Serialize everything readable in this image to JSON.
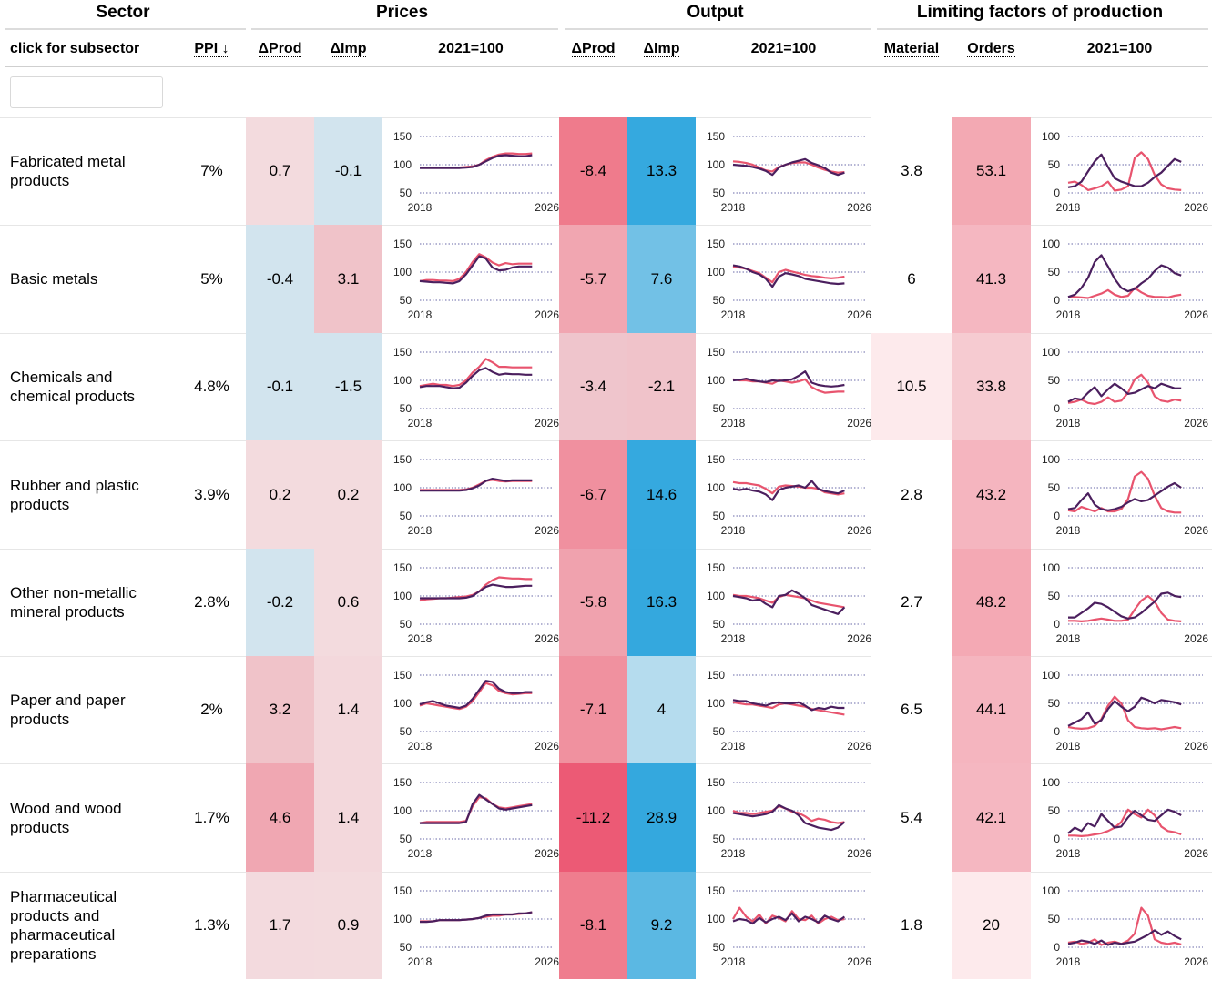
{
  "header": {
    "groups": {
      "sector": "Sector",
      "prices": "Prices",
      "output": "Output",
      "limiting": "Limiting factors of production"
    },
    "subheaders": {
      "subsector": "click for subsector",
      "ppi": "PPI ↓",
      "prices_dprod": "ΔProd",
      "prices_dimp": "ΔImp",
      "prices_index": "2021=100",
      "output_dprod": "ΔProd",
      "output_dimp": "ΔImp",
      "output_index": "2021=100",
      "material": "Material",
      "orders": "Orders",
      "limiting_index": "2021=100"
    }
  },
  "filter": {
    "value": "",
    "placeholder": ""
  },
  "colors": {
    "series_dark": "#4b1f5e",
    "series_red": "#e8546e",
    "grid": "#3a3a8c",
    "negative_strong": "#f1587a",
    "positive_strong": "#33a9df"
  },
  "axes": {
    "year_start": "2018",
    "year_end": "2026",
    "prices_ticks": [
      "150",
      "100",
      "50"
    ],
    "output_ticks": [
      "150",
      "100",
      "50"
    ],
    "limiting_ticks": [
      "100",
      "50",
      "0"
    ]
  },
  "rows": [
    {
      "name": "Fabricated metal products",
      "ppi": "7%",
      "prices_dprod": "0.7",
      "prices_dprod_color": "#f3dbde",
      "prices_dimp": "-0.1",
      "prices_dimp_color": "#d2e4ee",
      "output_dprod": "-8.4",
      "output_dprod_color": "#ef7b8c",
      "output_dimp": "13.3",
      "output_dimp_color": "#35a9df",
      "material": "3.8",
      "material_color": "#ffffff",
      "orders": "53.1",
      "orders_color": "#f3a9b3",
      "prices_series": {
        "red": [
          95,
          95,
          95,
          95,
          95,
          95,
          95,
          96,
          97,
          100,
          108,
          114,
          118,
          120,
          120,
          119,
          119,
          120
        ],
        "dark": [
          94,
          94,
          94,
          94,
          94,
          94,
          94,
          95,
          96,
          100,
          106,
          112,
          116,
          117,
          116,
          115,
          115,
          117
        ]
      },
      "output_series": {
        "red": [
          106,
          105,
          103,
          100,
          95,
          90,
          88,
          96,
          100,
          103,
          104,
          104,
          100,
          95,
          91,
          88,
          86,
          87
        ],
        "dark": [
          100,
          99,
          98,
          96,
          93,
          89,
          82,
          95,
          100,
          104,
          107,
          110,
          103,
          99,
          94,
          86,
          82,
          86
        ]
      },
      "limiting_series": {
        "red": [
          18,
          20,
          14,
          5,
          8,
          12,
          20,
          4,
          6,
          12,
          62,
          72,
          60,
          32,
          15,
          8,
          6,
          5
        ],
        "dark": [
          10,
          12,
          20,
          38,
          56,
          68,
          46,
          26,
          20,
          16,
          12,
          12,
          18,
          28,
          36,
          48,
          60,
          55
        ]
      }
    },
    {
      "name": "Basic metals",
      "ppi": "5%",
      "prices_dprod": "-0.4",
      "prices_dprod_color": "#d2e4ee",
      "prices_dimp": "3.1",
      "prices_dimp_color": "#f0c3c9",
      "output_dprod": "-5.7",
      "output_dprod_color": "#f1a6b1",
      "output_dimp": "7.6",
      "output_dimp_color": "#72c1e6",
      "material": "6",
      "material_color": "#ffffff",
      "orders": "41.3",
      "orders_color": "#f5b7c1",
      "prices_series": {
        "red": [
          84,
          86,
          86,
          85,
          85,
          84,
          88,
          100,
          118,
          132,
          126,
          117,
          112,
          116,
          114,
          115,
          115,
          115
        ],
        "dark": [
          84,
          83,
          82,
          82,
          81,
          80,
          84,
          96,
          112,
          128,
          124,
          108,
          103,
          104,
          108,
          110,
          110,
          110
        ]
      },
      "output_series": {
        "red": [
          110,
          108,
          106,
          102,
          98,
          90,
          82,
          100,
          104,
          101,
          98,
          95,
          93,
          92,
          90,
          89,
          90,
          92
        ],
        "dark": [
          112,
          110,
          106,
          100,
          96,
          88,
          74,
          92,
          98,
          96,
          93,
          88,
          86,
          84,
          82,
          80,
          79,
          80
        ]
      },
      "limiting_series": {
        "red": [
          5,
          6,
          5,
          4,
          8,
          12,
          18,
          10,
          6,
          8,
          22,
          14,
          8,
          6,
          6,
          5,
          8,
          10
        ],
        "dark": [
          6,
          10,
          22,
          40,
          68,
          80,
          60,
          38,
          22,
          16,
          20,
          30,
          38,
          52,
          62,
          58,
          48,
          44
        ]
      }
    },
    {
      "name": "Chemicals and chemical products",
      "ppi": "4.8%",
      "prices_dprod": "-0.1",
      "prices_dprod_color": "#d2e4ee",
      "prices_dimp": "-1.5",
      "prices_dimp_color": "#d2e4ee",
      "output_dprod": "-3.4",
      "output_dprod_color": "#efc5cc",
      "output_dimp": "-2.1",
      "output_dimp_color": "#f0c3ca",
      "material": "10.5",
      "material_color": "#fdeaec",
      "orders": "33.8",
      "orders_color": "#f6cbd1",
      "prices_series": {
        "red": [
          90,
          92,
          94,
          92,
          92,
          90,
          92,
          100,
          114,
          124,
          138,
          132,
          124,
          124,
          123,
          123,
          123,
          123
        ],
        "dark": [
          88,
          90,
          90,
          90,
          88,
          86,
          87,
          96,
          108,
          118,
          122,
          115,
          110,
          112,
          111,
          111,
          110,
          110
        ]
      },
      "output_series": {
        "red": [
          102,
          100,
          100,
          98,
          98,
          96,
          94,
          100,
          98,
          96,
          98,
          102,
          88,
          82,
          78,
          79,
          80,
          80
        ],
        "dark": [
          100,
          101,
          103,
          100,
          98,
          97,
          100,
          99,
          100,
          102,
          108,
          116,
          96,
          92,
          90,
          89,
          90,
          92
        ]
      },
      "limiting_series": {
        "red": [
          10,
          12,
          16,
          10,
          8,
          12,
          20,
          12,
          14,
          28,
          52,
          60,
          46,
          22,
          14,
          12,
          16,
          14
        ],
        "dark": [
          12,
          18,
          16,
          28,
          38,
          22,
          34,
          44,
          36,
          26,
          28,
          34,
          40,
          36,
          44,
          40,
          36,
          36
        ]
      }
    },
    {
      "name": "Rubber and plastic products",
      "ppi": "3.9%",
      "prices_dprod": "0.2",
      "prices_dprod_color": "#f3dbde",
      "prices_dimp": "0.2",
      "prices_dimp_color": "#f3dbde",
      "output_dprod": "-6.7",
      "output_dprod_color": "#f0909f",
      "output_dimp": "14.6",
      "output_dimp_color": "#35a9df",
      "material": "2.8",
      "material_color": "#ffffff",
      "orders": "43.2",
      "orders_color": "#f5b5bf",
      "prices_series": {
        "red": [
          96,
          96,
          96,
          96,
          96,
          96,
          96,
          97,
          100,
          106,
          112,
          114,
          112,
          111,
          112,
          112,
          112,
          112
        ],
        "dark": [
          95,
          95,
          95,
          95,
          95,
          95,
          95,
          96,
          99,
          104,
          112,
          116,
          114,
          112,
          113,
          113,
          113,
          113
        ]
      },
      "output_series": {
        "red": [
          110,
          108,
          108,
          106,
          104,
          98,
          90,
          102,
          104,
          103,
          102,
          100,
          100,
          98,
          92,
          90,
          88,
          90
        ],
        "dark": [
          98,
          96,
          98,
          95,
          93,
          88,
          78,
          96,
          100,
          102,
          104,
          100,
          112,
          98,
          94,
          92,
          90,
          95
        ]
      },
      "limiting_series": {
        "red": [
          10,
          8,
          16,
          12,
          8,
          14,
          8,
          8,
          12,
          30,
          70,
          78,
          66,
          36,
          14,
          8,
          6,
          6
        ],
        "dark": [
          12,
          14,
          28,
          40,
          20,
          12,
          10,
          12,
          16,
          24,
          30,
          26,
          28,
          36,
          44,
          52,
          58,
          50
        ]
      }
    },
    {
      "name": "Other non-metallic mineral products",
      "ppi": "2.8%",
      "prices_dprod": "-0.2",
      "prices_dprod_color": "#d2e4ee",
      "prices_dimp": "0.6",
      "prices_dimp_color": "#f3dbde",
      "output_dprod": "-5.8",
      "output_dprod_color": "#f0a2ae",
      "output_dimp": "16.3",
      "output_dimp_color": "#34a8de",
      "material": "2.7",
      "material_color": "#ffffff",
      "orders": "48.2",
      "orders_color": "#f4a9b4",
      "prices_series": {
        "red": [
          92,
          94,
          95,
          96,
          96,
          97,
          98,
          99,
          102,
          108,
          120,
          128,
          133,
          132,
          131,
          131,
          130,
          130
        ],
        "dark": [
          96,
          96,
          96,
          96,
          96,
          96,
          96,
          97,
          100,
          108,
          116,
          120,
          118,
          116,
          116,
          117,
          118,
          118
        ]
      },
      "output_series": {
        "red": [
          102,
          100,
          100,
          98,
          96,
          92,
          88,
          98,
          102,
          100,
          98,
          96,
          92,
          88,
          86,
          84,
          82,
          80
        ],
        "dark": [
          100,
          98,
          96,
          92,
          94,
          86,
          80,
          100,
          102,
          110,
          104,
          96,
          84,
          80,
          76,
          72,
          68,
          80
        ]
      },
      "limiting_series": {
        "red": [
          6,
          6,
          5,
          6,
          8,
          10,
          8,
          6,
          6,
          8,
          26,
          42,
          50,
          40,
          20,
          8,
          6,
          5
        ],
        "dark": [
          12,
          12,
          20,
          28,
          38,
          36,
          30,
          22,
          14,
          10,
          12,
          20,
          30,
          40,
          54,
          56,
          50,
          48
        ]
      }
    },
    {
      "name": "Paper and paper products",
      "ppi": "2%",
      "prices_dprod": "3.2",
      "prices_dprod_color": "#f0c3c9",
      "prices_dimp": "1.4",
      "prices_dimp_color": "#f3d8dc",
      "output_dprod": "-7.1",
      "output_dprod_color": "#f0919f",
      "output_dimp": "4",
      "output_dimp_color": "#b5dcee",
      "material": "6.5",
      "material_color": "#ffffff",
      "orders": "44.1",
      "orders_color": "#f5b5bf",
      "prices_series": {
        "red": [
          96,
          100,
          98,
          96,
          94,
          92,
          90,
          94,
          104,
          120,
          136,
          132,
          122,
          118,
          116,
          117,
          118,
          118
        ],
        "dark": [
          98,
          102,
          104,
          100,
          96,
          94,
          92,
          96,
          108,
          124,
          140,
          138,
          126,
          120,
          118,
          118,
          120,
          120
        ]
      },
      "output_series": {
        "red": [
          102,
          100,
          98,
          98,
          96,
          94,
          92,
          98,
          100,
          98,
          96,
          94,
          90,
          88,
          86,
          84,
          82,
          80
        ],
        "dark": [
          106,
          104,
          104,
          100,
          98,
          96,
          100,
          102,
          100,
          100,
          102,
          96,
          88,
          92,
          90,
          94,
          92,
          92
        ]
      },
      "limiting_series": {
        "red": [
          8,
          6,
          5,
          6,
          10,
          22,
          46,
          62,
          50,
          20,
          8,
          6,
          5,
          6,
          4,
          6,
          8,
          6
        ],
        "dark": [
          10,
          16,
          22,
          34,
          14,
          20,
          40,
          54,
          44,
          36,
          44,
          60,
          56,
          50,
          56,
          54,
          52,
          48
        ]
      }
    },
    {
      "name": "Wood and wood products",
      "ppi": "1.7%",
      "prices_dprod": "4.6",
      "prices_dprod_color": "#f0a7b2",
      "prices_dimp": "1.4",
      "prices_dimp_color": "#f3d8dc",
      "output_dprod": "-11.2",
      "output_dprod_color": "#ec5a75",
      "output_dimp": "28.9",
      "output_dimp_color": "#34a8de",
      "material": "5.4",
      "material_color": "#ffffff",
      "orders": "42.1",
      "orders_color": "#f5b7c1",
      "prices_series": {
        "red": [
          78,
          80,
          80,
          80,
          80,
          80,
          80,
          82,
          108,
          124,
          122,
          112,
          106,
          104,
          106,
          108,
          110,
          112
        ],
        "dark": [
          78,
          78,
          78,
          78,
          78,
          78,
          78,
          80,
          112,
          128,
          120,
          112,
          104,
          102,
          104,
          106,
          108,
          110
        ]
      },
      "output_series": {
        "red": [
          100,
          96,
          96,
          94,
          96,
          98,
          100,
          108,
          104,
          98,
          96,
          90,
          82,
          86,
          84,
          80,
          78,
          80
        ],
        "dark": [
          96,
          94,
          92,
          90,
          92,
          94,
          98,
          110,
          104,
          100,
          92,
          78,
          74,
          70,
          68,
          66,
          70,
          80
        ]
      },
      "limiting_series": {
        "red": [
          6,
          6,
          5,
          6,
          8,
          10,
          14,
          20,
          30,
          52,
          44,
          38,
          52,
          42,
          22,
          14,
          12,
          8
        ],
        "dark": [
          10,
          20,
          14,
          28,
          22,
          44,
          32,
          20,
          22,
          38,
          50,
          42,
          34,
          32,
          42,
          52,
          48,
          42
        ]
      }
    },
    {
      "name": "Pharmaceutical products and pharmaceutical preparations",
      "ppi": "1.3%",
      "prices_dprod": "1.7",
      "prices_dprod_color": "#f3dade",
      "prices_dimp": "0.9",
      "prices_dimp_color": "#f3dbde",
      "output_dprod": "-8.1",
      "output_dprod_color": "#ef7d8e",
      "output_dimp": "9.2",
      "output_dimp_color": "#5bb8e3",
      "material": "1.8",
      "material_color": "#ffffff",
      "orders": "20",
      "orders_color": "#fdeaec",
      "prices_series": {
        "red": [
          96,
          96,
          96,
          98,
          98,
          98,
          98,
          99,
          100,
          102,
          104,
          106,
          106,
          108,
          108,
          109,
          110,
          112
        ],
        "dark": [
          95,
          95,
          96,
          98,
          98,
          98,
          98,
          99,
          100,
          102,
          106,
          108,
          108,
          108,
          108,
          110,
          110,
          112
        ]
      },
      "output_series": {
        "red": [
          100,
          120,
          104,
          96,
          108,
          92,
          106,
          102,
          96,
          114,
          100,
          98,
          106,
          92,
          100,
          104,
          98,
          100
        ],
        "dark": [
          96,
          100,
          98,
          92,
          102,
          94,
          100,
          104,
          98,
          110,
          96,
          104,
          100,
          94,
          106,
          100,
          96,
          104
        ]
      },
      "limiting_series": {
        "red": [
          8,
          10,
          6,
          8,
          14,
          4,
          8,
          10,
          6,
          12,
          24,
          70,
          56,
          14,
          8,
          6,
          8,
          5
        ],
        "dark": [
          6,
          8,
          12,
          10,
          6,
          12,
          4,
          8,
          6,
          8,
          10,
          16,
          22,
          30,
          22,
          28,
          20,
          14
        ]
      }
    }
  ]
}
